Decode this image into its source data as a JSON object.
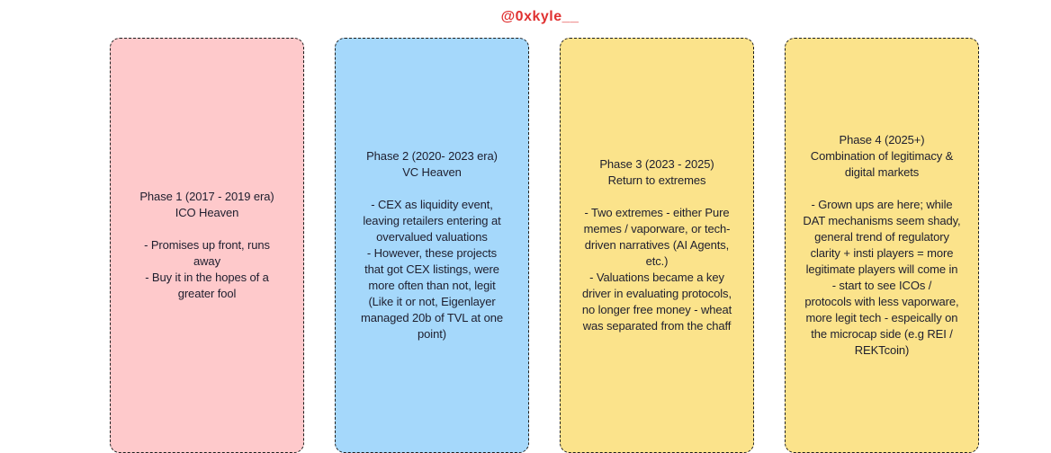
{
  "attribution": {
    "handle": "@0xkyle__",
    "color": "#e03131"
  },
  "colors": {
    "card_pink": "#fec9cb",
    "card_blue": "#a5d8fb",
    "card_yellow": "#fbe38b",
    "border": "#1e1e1e",
    "text": "#1e1e2e",
    "background": "#ffffff"
  },
  "cards": [
    {
      "id": "phase-1",
      "color": "#fec9cb",
      "header": "Phase 1 (2017 - 2019 era)\nICO Heaven",
      "body": "- Promises up front, runs\naway\n- Buy it in the hopes of a\ngreater fool"
    },
    {
      "id": "phase-2",
      "color": "#a5d8fb",
      "header": "Phase 2 (2020- 2023 era)\nVC Heaven",
      "body": "- CEX as liquidity event,\nleaving retailers entering at\novervalued valuations\n- However, these projects\nthat got CEX listings, were\nmore often than not, legit\n(Like it or not, Eigenlayer\nmanaged 20b of TVL at one\npoint)"
    },
    {
      "id": "phase-3",
      "color": "#fbe38b",
      "header": "Phase 3 (2023 - 2025)\nReturn to extremes",
      "body": "- Two extremes - either Pure\nmemes / vaporware, or tech-\ndriven narratives (AI Agents,\netc.)\n- Valuations became a key\ndriver in evaluating protocols,\nno longer free money - wheat\nwas separated from the chaff"
    },
    {
      "id": "phase-4",
      "color": "#fbe38b",
      "header": "Phase 4 (2025+)\nCombination of legitimacy &\ndigital markets",
      "body": "- Grown ups are here; while\nDAT mechanisms seem shady,\ngeneral trend of regulatory\nclarity + insti players = more\nlegitimate players will come in\n- start to see ICOs /\nprotocols with less vaporware,\nmore legit tech - espeically on\nthe microcap side (e.g REI /\nREKTcoin)"
    }
  ]
}
